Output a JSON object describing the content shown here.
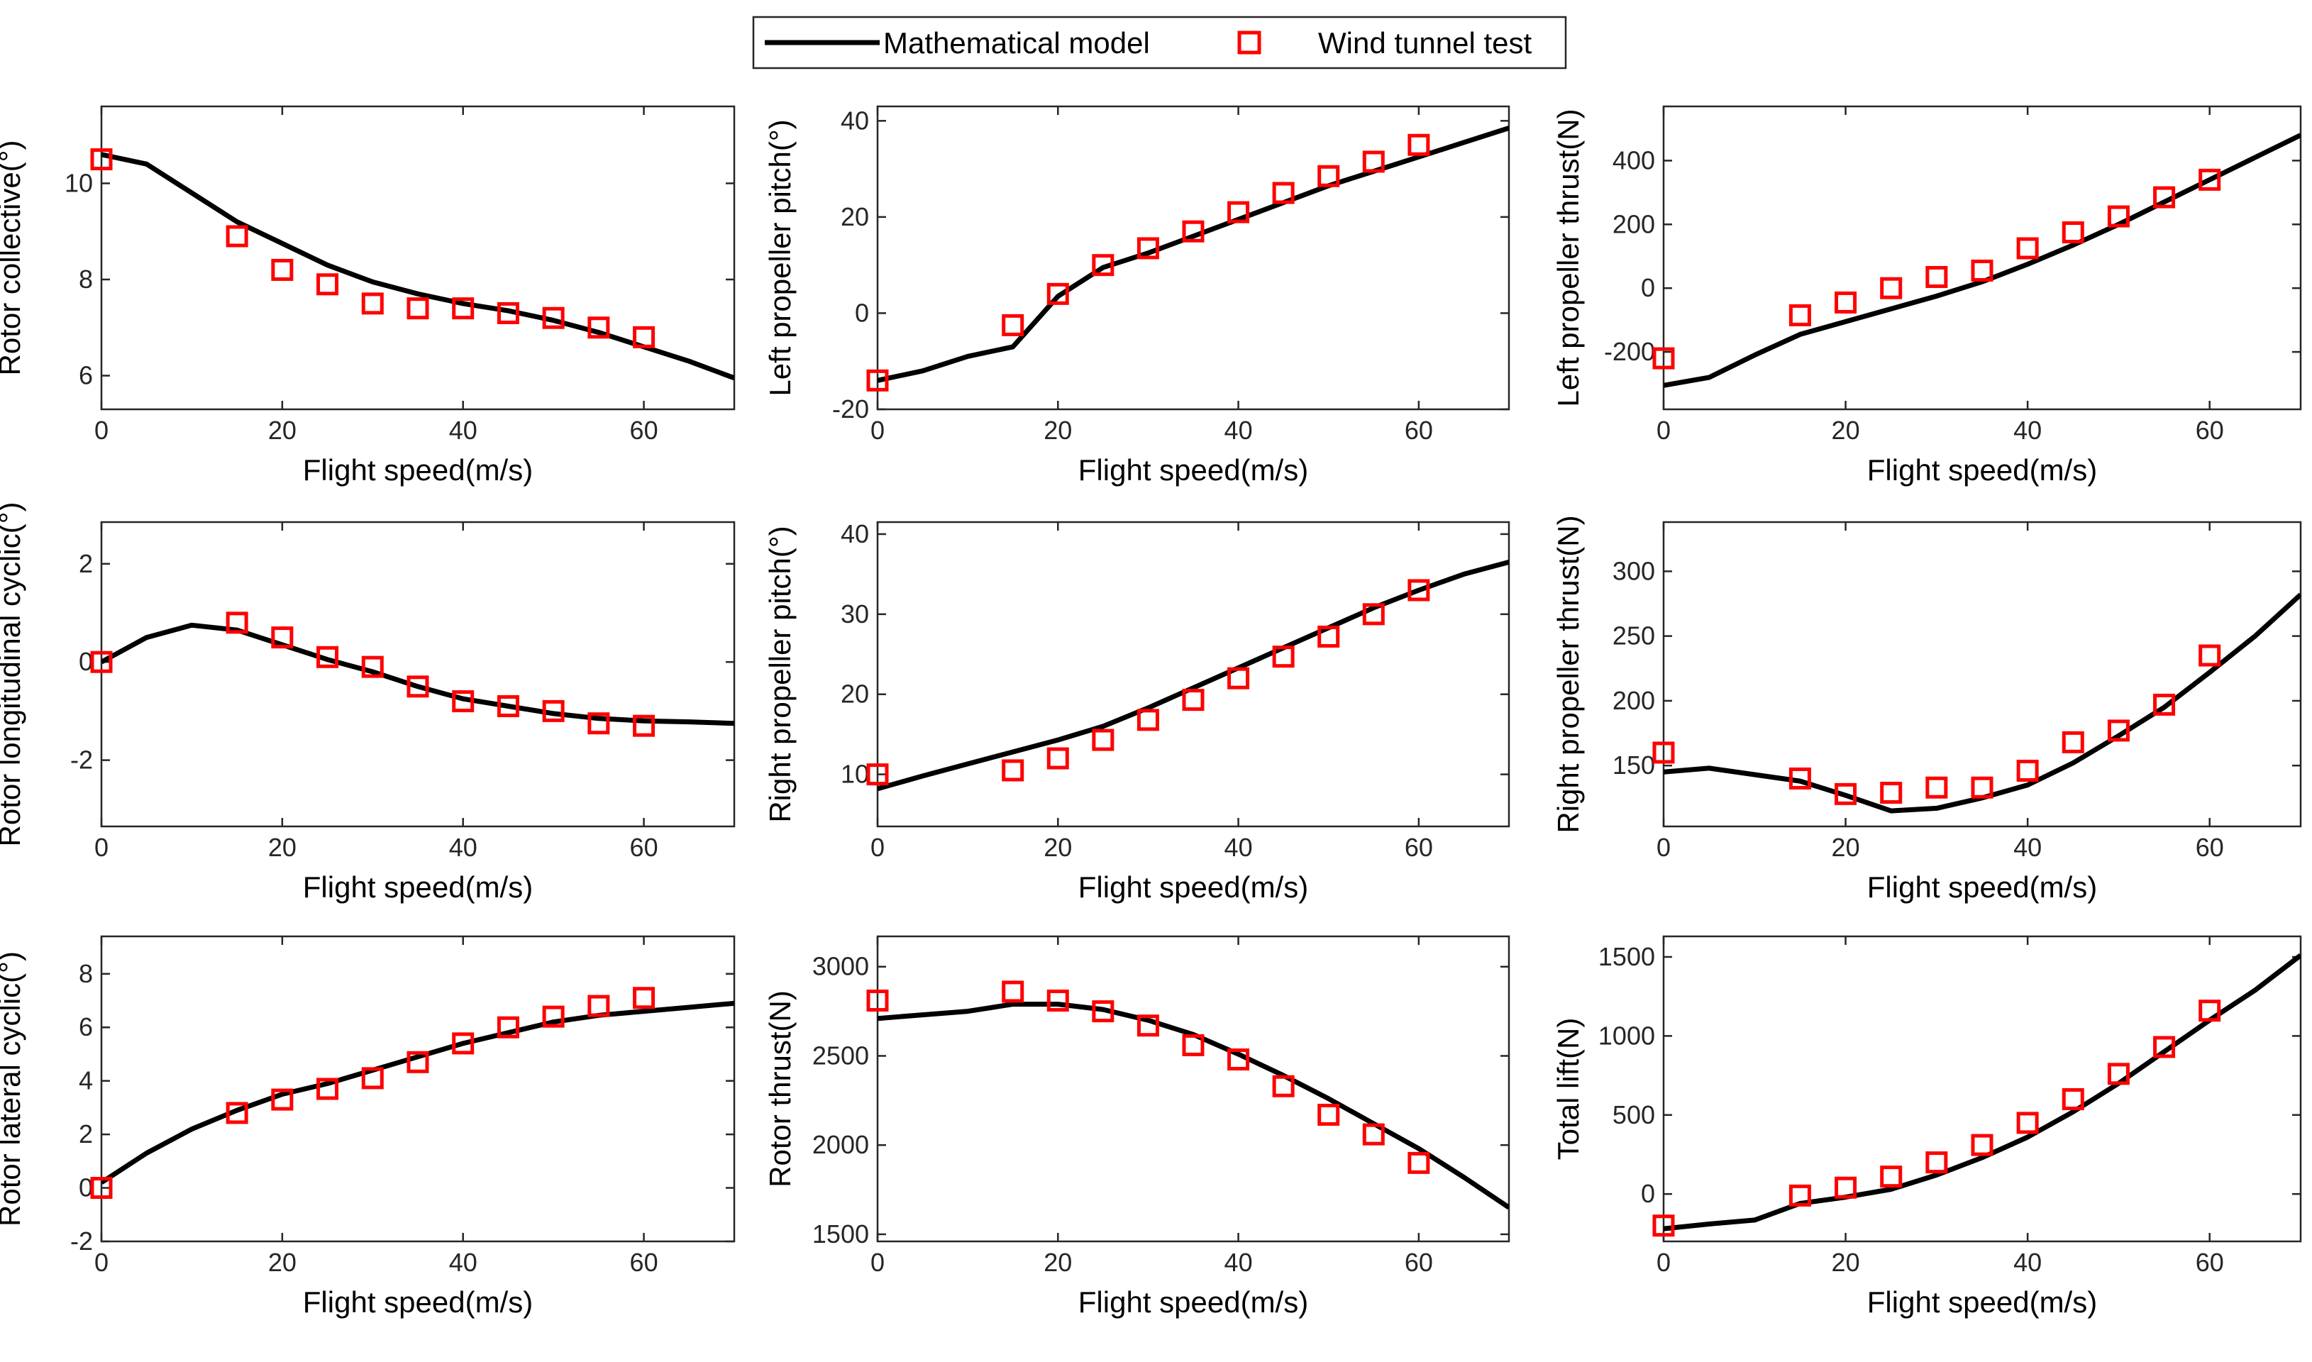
{
  "legend": {
    "model_label": "Mathematical model",
    "test_label": "Wind tunnel test",
    "model_color": "#000000",
    "test_color": "#ff0000"
  },
  "chart_data": [
    {
      "id": "rotor-collective",
      "type": "line",
      "title": "",
      "xlabel": "Flight speed(m/s)",
      "ylabel": "Rotor collective(°)",
      "xlim": [
        0,
        70
      ],
      "ylim": [
        5.3,
        11.6
      ],
      "xticks": [
        0,
        20,
        40,
        60
      ],
      "yticks": [
        6,
        8,
        10
      ],
      "series": [
        {
          "name": "Mathematical model",
          "x": [
            0,
            5,
            10,
            15,
            20,
            25,
            30,
            35,
            40,
            45,
            50,
            55,
            60,
            65,
            70
          ],
          "y": [
            10.6,
            10.4,
            9.8,
            9.2,
            8.75,
            8.3,
            7.95,
            7.7,
            7.5,
            7.35,
            7.15,
            6.9,
            6.6,
            6.3,
            5.95
          ]
        },
        {
          "name": "Wind tunnel test",
          "x": [
            0,
            15,
            20,
            25,
            30,
            35,
            40,
            45,
            50,
            55,
            60
          ],
          "y": [
            10.5,
            8.9,
            8.2,
            7.9,
            7.5,
            7.4,
            7.4,
            7.3,
            7.2,
            7.0,
            6.8
          ]
        }
      ]
    },
    {
      "id": "left-propeller-pitch",
      "type": "line",
      "title": "",
      "xlabel": "Flight speed(m/s)",
      "ylabel": "Left propeller pitch(°)",
      "xlim": [
        0,
        70
      ],
      "ylim": [
        -20,
        43
      ],
      "xticks": [
        0,
        20,
        40,
        60
      ],
      "yticks": [
        -20,
        0,
        20,
        40
      ],
      "series": [
        {
          "name": "Mathematical model",
          "x": [
            0,
            5,
            10,
            15,
            20,
            25,
            30,
            35,
            40,
            45,
            50,
            55,
            60,
            65,
            70
          ],
          "y": [
            -14,
            -12,
            -9,
            -7,
            3.5,
            9.5,
            12.5,
            16,
            19.5,
            23,
            26.5,
            29.5,
            32.5,
            35.5,
            38.5
          ]
        },
        {
          "name": "Wind tunnel test",
          "x": [
            0,
            15,
            20,
            25,
            30,
            35,
            40,
            45,
            50,
            55,
            60
          ],
          "y": [
            -14,
            -2.5,
            4,
            10,
            13.5,
            17,
            21,
            25,
            28.5,
            31.5,
            35
          ]
        }
      ]
    },
    {
      "id": "left-propeller-thrust",
      "type": "line",
      "title": "",
      "xlabel": "Flight speed(m/s)",
      "ylabel": "Left propeller thrust(N)",
      "xlim": [
        0,
        70
      ],
      "ylim": [
        -380,
        570
      ],
      "xticks": [
        0,
        20,
        40,
        60
      ],
      "yticks": [
        -200,
        0,
        200,
        400
      ],
      "series": [
        {
          "name": "Mathematical model",
          "x": [
            0,
            5,
            10,
            15,
            20,
            25,
            30,
            35,
            40,
            45,
            50,
            55,
            60,
            65,
            70
          ],
          "y": [
            -305,
            -280,
            -210,
            -145,
            -105,
            -65,
            -25,
            20,
            75,
            135,
            200,
            270,
            340,
            410,
            480
          ]
        },
        {
          "name": "Wind tunnel test",
          "x": [
            0,
            15,
            20,
            25,
            30,
            35,
            40,
            45,
            50,
            55,
            60
          ],
          "y": [
            -220,
            -85,
            -45,
            0,
            35,
            55,
            125,
            175,
            225,
            285,
            340
          ]
        }
      ]
    },
    {
      "id": "rotor-longitudinal-cyclic",
      "type": "line",
      "title": "",
      "xlabel": "Flight speed(m/s)",
      "ylabel": "Rotor longitudinal cyclic(°)",
      "xlim": [
        0,
        70
      ],
      "ylim": [
        -3.35,
        2.85
      ],
      "xticks": [
        0,
        20,
        40,
        60
      ],
      "yticks": [
        -2,
        0,
        2
      ],
      "series": [
        {
          "name": "Mathematical model",
          "x": [
            0,
            5,
            10,
            15,
            20,
            25,
            30,
            35,
            40,
            45,
            50,
            55,
            60,
            65,
            70
          ],
          "y": [
            0,
            0.5,
            0.75,
            0.65,
            0.35,
            0.05,
            -0.2,
            -0.5,
            -0.75,
            -0.9,
            -1.05,
            -1.15,
            -1.2,
            -1.22,
            -1.25
          ]
        },
        {
          "name": "Wind tunnel test",
          "x": [
            0,
            15,
            20,
            25,
            30,
            35,
            40,
            45,
            50,
            55,
            60
          ],
          "y": [
            0,
            0.8,
            0.5,
            0.1,
            -0.1,
            -0.5,
            -0.8,
            -0.9,
            -1.0,
            -1.25,
            -1.3
          ]
        }
      ]
    },
    {
      "id": "right-propeller-pitch",
      "type": "line",
      "title": "",
      "xlabel": "Flight speed(m/s)",
      "ylabel": "Right propeller pitch(°)",
      "xlim": [
        0,
        70
      ],
      "ylim": [
        3.5,
        41.5
      ],
      "xticks": [
        0,
        20,
        40,
        60
      ],
      "yticks": [
        10,
        20,
        30,
        40
      ],
      "series": [
        {
          "name": "Mathematical model",
          "x": [
            0,
            5,
            10,
            15,
            20,
            25,
            30,
            35,
            40,
            45,
            50,
            55,
            60,
            65,
            70
          ],
          "y": [
            8.2,
            9.8,
            11.3,
            12.8,
            14.3,
            16.0,
            18.3,
            20.8,
            23.3,
            25.8,
            28.3,
            30.8,
            33.0,
            35.0,
            36.5
          ]
        },
        {
          "name": "Wind tunnel test",
          "x": [
            0,
            15,
            20,
            25,
            30,
            35,
            40,
            45,
            50,
            55,
            60
          ],
          "y": [
            10,
            10.5,
            12,
            14.3,
            16.8,
            19.3,
            22,
            24.7,
            27.2,
            30,
            33
          ]
        }
      ]
    },
    {
      "id": "right-propeller-thrust",
      "type": "line",
      "title": "",
      "xlabel": "Flight speed(m/s)",
      "ylabel": "Right propeller thrust(N)",
      "xlim": [
        0,
        70
      ],
      "ylim": [
        103,
        338
      ],
      "xticks": [
        0,
        20,
        40,
        60
      ],
      "yticks": [
        150,
        200,
        250,
        300
      ],
      "series": [
        {
          "name": "Mathematical model",
          "x": [
            0,
            5,
            10,
            15,
            20,
            25,
            30,
            35,
            40,
            45,
            50,
            55,
            60,
            65,
            70
          ],
          "y": [
            145,
            148,
            143,
            138,
            127,
            115,
            117,
            125,
            135,
            152,
            173,
            195,
            222,
            250,
            282
          ]
        },
        {
          "name": "Wind tunnel test",
          "x": [
            0,
            15,
            20,
            25,
            30,
            35,
            40,
            45,
            50,
            55,
            60
          ],
          "y": [
            160,
            140,
            128,
            129,
            133,
            133,
            146,
            168,
            177,
            197,
            235
          ]
        }
      ]
    },
    {
      "id": "rotor-lateral-cyclic",
      "type": "line",
      "title": "",
      "xlabel": "Flight speed(m/s)",
      "ylabel": "Rotor lateral cyclic(°)",
      "xlim": [
        0,
        70
      ],
      "ylim": [
        -2,
        9.4
      ],
      "xticks": [
        0,
        20,
        40,
        60
      ],
      "yticks": [
        -2,
        0,
        2,
        4,
        6,
        8
      ],
      "series": [
        {
          "name": "Mathematical model",
          "x": [
            0,
            5,
            10,
            15,
            20,
            25,
            30,
            35,
            40,
            45,
            50,
            55,
            60,
            65,
            70
          ],
          "y": [
            0.2,
            1.3,
            2.2,
            2.9,
            3.5,
            3.9,
            4.4,
            4.9,
            5.4,
            5.8,
            6.2,
            6.45,
            6.6,
            6.75,
            6.9
          ]
        },
        {
          "name": "Wind tunnel test",
          "x": [
            0,
            15,
            20,
            25,
            30,
            35,
            40,
            45,
            50,
            55,
            60
          ],
          "y": [
            0,
            2.8,
            3.3,
            3.7,
            4.1,
            4.7,
            5.4,
            6.0,
            6.4,
            6.8,
            7.1
          ]
        }
      ]
    },
    {
      "id": "rotor-thrust",
      "type": "line",
      "title": "",
      "xlabel": "Flight speed(m/s)",
      "ylabel": "Rotor thrust(N)",
      "xlim": [
        0,
        70
      ],
      "ylim": [
        1460,
        3170
      ],
      "xticks": [
        0,
        20,
        40,
        60
      ],
      "yticks": [
        1500,
        2000,
        2500,
        3000
      ],
      "series": [
        {
          "name": "Mathematical model",
          "x": [
            0,
            5,
            10,
            15,
            20,
            25,
            30,
            35,
            40,
            45,
            50,
            55,
            60,
            65,
            70
          ],
          "y": [
            2710,
            2730,
            2750,
            2790,
            2790,
            2760,
            2700,
            2620,
            2510,
            2390,
            2260,
            2120,
            1980,
            1820,
            1650
          ]
        },
        {
          "name": "Wind tunnel test",
          "x": [
            0,
            15,
            20,
            25,
            30,
            35,
            40,
            45,
            50,
            55,
            60
          ],
          "y": [
            2810,
            2860,
            2810,
            2750,
            2670,
            2560,
            2480,
            2330,
            2170,
            2060,
            1900
          ]
        }
      ]
    },
    {
      "id": "total-lift",
      "type": "line",
      "title": "",
      "xlabel": "Flight speed(m/s)",
      "ylabel": "Total lift(N)",
      "xlim": [
        0,
        70
      ],
      "ylim": [
        -300,
        1630
      ],
      "xticks": [
        0,
        20,
        40,
        60
      ],
      "yticks": [
        0,
        500,
        1000,
        1500
      ],
      "series": [
        {
          "name": "Mathematical model",
          "x": [
            0,
            5,
            10,
            15,
            20,
            25,
            30,
            35,
            40,
            45,
            50,
            55,
            60,
            65,
            70
          ],
          "y": [
            -220,
            -190,
            -165,
            -60,
            -20,
            30,
            120,
            230,
            360,
            520,
            700,
            900,
            1100,
            1290,
            1510
          ]
        },
        {
          "name": "Wind tunnel test",
          "x": [
            0,
            15,
            20,
            25,
            30,
            35,
            40,
            45,
            50,
            55,
            60
          ],
          "y": [
            -200,
            -10,
            40,
            110,
            200,
            310,
            450,
            600,
            760,
            930,
            1160
          ]
        }
      ]
    }
  ]
}
